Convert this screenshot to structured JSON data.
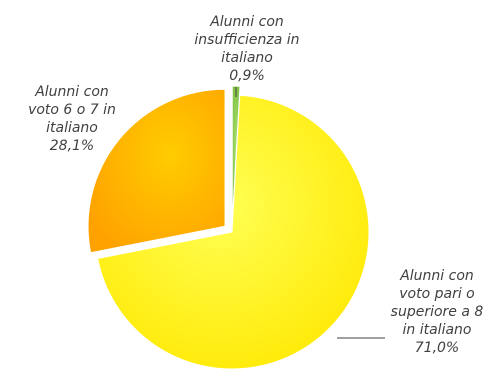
{
  "chart_data": {
    "type": "pie",
    "title": "",
    "slices": [
      {
        "label_lines": [
          "Alunni con",
          "insufficienza in",
          "italiano"
        ],
        "value_label": "0,9%",
        "value": 0.9,
        "color": "#8fd14f",
        "exploded": true
      },
      {
        "label_lines": [
          "Alunni con",
          "voto pari o",
          "superiore a 8",
          "in italiano"
        ],
        "value_label": "71,0%",
        "value": 71.0,
        "color": "#ffff00",
        "exploded": false
      },
      {
        "label_lines": [
          "Alunni con",
          "voto 6 o 7 in",
          "italiano"
        ],
        "value_label": "28,1%",
        "value": 28.1,
        "color": "#ffb900",
        "exploded": true
      }
    ]
  }
}
